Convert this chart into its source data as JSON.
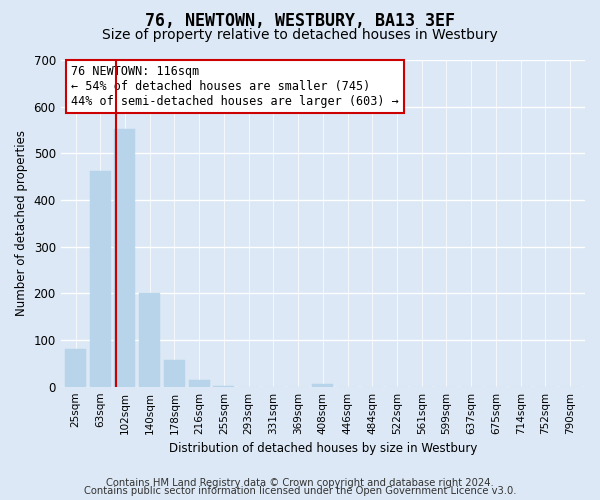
{
  "title": "76, NEWTOWN, WESTBURY, BA13 3EF",
  "subtitle": "Size of property relative to detached houses in Westbury",
  "xlabel": "Distribution of detached houses by size in Westbury",
  "ylabel": "Number of detached properties",
  "bar_labels": [
    "25sqm",
    "63sqm",
    "102sqm",
    "140sqm",
    "178sqm",
    "216sqm",
    "255sqm",
    "293sqm",
    "331sqm",
    "369sqm",
    "408sqm",
    "446sqm",
    "484sqm",
    "522sqm",
    "561sqm",
    "599sqm",
    "637sqm",
    "675sqm",
    "714sqm",
    "752sqm",
    "790sqm"
  ],
  "bar_values": [
    80,
    462,
    553,
    200,
    57,
    15,
    1,
    0,
    0,
    0,
    5,
    0,
    0,
    0,
    0,
    0,
    0,
    0,
    0,
    0,
    0
  ],
  "bar_color": "#b8d4ea",
  "bar_edge_color": "#b8d4ea",
  "ylim": [
    0,
    700
  ],
  "yticks": [
    0,
    100,
    200,
    300,
    400,
    500,
    600,
    700
  ],
  "vline_x_index": 2,
  "vline_color": "#cc0000",
  "annotation_text": "76 NEWTOWN: 116sqm\n← 54% of detached houses are smaller (745)\n44% of semi-detached houses are larger (603) →",
  "annotation_box_color": "#ffffff",
  "annotation_box_edge": "#cc0000",
  "footnote1": "Contains HM Land Registry data © Crown copyright and database right 2024.",
  "footnote2": "Contains public sector information licensed under the Open Government Licence v3.0.",
  "bg_color": "#dce8f5",
  "plot_bg_color": "#dce8f5",
  "grid_color": "#ffffff",
  "title_fontsize": 12,
  "subtitle_fontsize": 10,
  "footnote_fontsize": 7.2
}
